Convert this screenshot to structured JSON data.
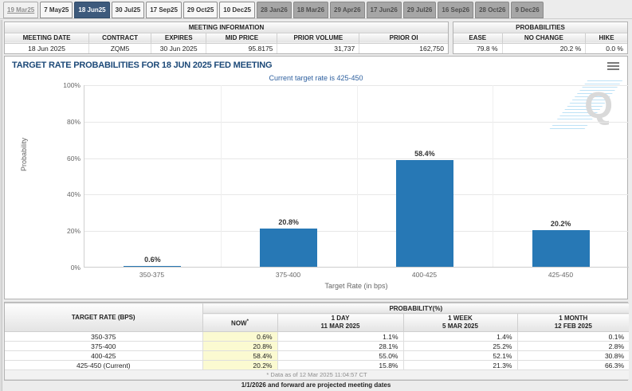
{
  "tabs": [
    {
      "label": "19 Mar25",
      "state": "past"
    },
    {
      "label": "7 May25",
      "state": "normal"
    },
    {
      "label": "18 Jun25",
      "state": "active"
    },
    {
      "label": "30 Jul25",
      "state": "normal"
    },
    {
      "label": "17 Sep25",
      "state": "normal"
    },
    {
      "label": "29 Oct25",
      "state": "normal"
    },
    {
      "label": "10 Dec25",
      "state": "normal"
    },
    {
      "label": "28 Jan26",
      "state": "future"
    },
    {
      "label": "18 Mar26",
      "state": "future"
    },
    {
      "label": "29 Apr26",
      "state": "future"
    },
    {
      "label": "17 Jun26",
      "state": "future"
    },
    {
      "label": "29 Jul26",
      "state": "future"
    },
    {
      "label": "16 Sep26",
      "state": "future"
    },
    {
      "label": "28 Oct26",
      "state": "future"
    },
    {
      "label": "9 Dec26",
      "state": "future"
    }
  ],
  "meeting_information": {
    "title": "MEETING INFORMATION",
    "columns": [
      "MEETING DATE",
      "CONTRACT",
      "EXPIRES",
      "MID PRICE",
      "PRIOR VOLUME",
      "PRIOR OI"
    ],
    "values": [
      "18 Jun 2025",
      "ZQM5",
      "30 Jun 2025",
      "95.8175",
      "31,737",
      "162,750"
    ]
  },
  "probabilities_panel": {
    "title": "PROBABILITIES",
    "columns": [
      "EASE",
      "NO CHANGE",
      "HIKE"
    ],
    "values": [
      "79.8 %",
      "20.2 %",
      "0.0 %"
    ]
  },
  "icons": {
    "chart_menu": "hamburger-icon",
    "watermark": "quikstrike-q-watermark",
    "watermark_letter": "Q"
  },
  "chart_data": {
    "type": "bar",
    "title": "TARGET RATE PROBABILITIES FOR 18 JUN 2025 FED MEETING",
    "subtitle": "Current target rate is 425-450",
    "categories": [
      "350-375",
      "375-400",
      "400-425",
      "425-450"
    ],
    "values": [
      0.6,
      20.8,
      58.4,
      20.2
    ],
    "data_labels": [
      "0.6%",
      "20.8%",
      "58.4%",
      "20.2%"
    ],
    "xlabel": "Target Rate (in bps)",
    "ylabel": "Probability",
    "ylim": [
      0,
      100
    ],
    "yticks": [
      "0%",
      "20%",
      "40%",
      "60%",
      "80%",
      "100%"
    ],
    "grid": "horizontal and vertical light gray",
    "legend": "none",
    "bar_color": "#2778b5"
  },
  "history_table": {
    "rate_header": "TARGET RATE (BPS)",
    "group_header": "PROBABILITY(%)",
    "col_now": "NOW",
    "col_now_note_marker": "*",
    "cols": [
      {
        "label": "1 DAY",
        "date": "11 MAR 2025"
      },
      {
        "label": "1 WEEK",
        "date": "5 MAR 2025"
      },
      {
        "label": "1 MONTH",
        "date": "12 FEB 2025"
      }
    ],
    "rows": [
      {
        "rate": "350-375",
        "now": "0.6%",
        "one_day": "1.1%",
        "one_week": "1.4%",
        "one_month": "0.1%"
      },
      {
        "rate": "375-400",
        "now": "20.8%",
        "one_day": "28.1%",
        "one_week": "25.2%",
        "one_month": "2.8%"
      },
      {
        "rate": "400-425",
        "now": "58.4%",
        "one_day": "55.0%",
        "one_week": "52.1%",
        "one_month": "30.8%"
      },
      {
        "rate": "425-450 (Current)",
        "now": "20.2%",
        "one_day": "15.8%",
        "one_week": "21.3%",
        "one_month": "66.3%"
      }
    ],
    "footnote": "* Data as of 12 Mar 2025 11:04:57 CT"
  },
  "footer": {
    "note": "1/1/2026 and forward are projected meeting dates"
  },
  "colors": {
    "active_tab": "#3d5a7c",
    "bar": "#2778b5",
    "now_column_highlight": "#fbfad1",
    "title_navy": "#1c4978"
  }
}
